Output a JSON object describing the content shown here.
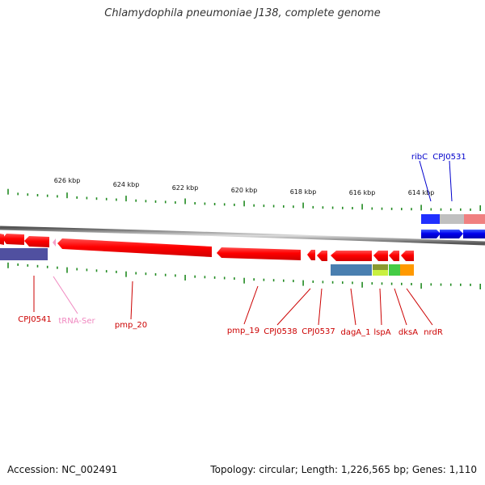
{
  "title": "Chlamydophila pneumoniae J138, complete genome",
  "footer": {
    "accession": "Accession: NC_002491",
    "summary": "Topology: circular; Length: 1,226,565 bp; Genes: 1,110"
  },
  "scale_ticks": [
    {
      "label": "626 kbp"
    },
    {
      "label": "624 kbp"
    },
    {
      "label": "622 kbp"
    },
    {
      "label": "620 kbp"
    },
    {
      "label": "618 kbp"
    },
    {
      "label": "616 kbp"
    },
    {
      "label": "614 kbp"
    }
  ],
  "genes": [
    {
      "label": "ribC",
      "color": "#0000cc"
    },
    {
      "label": "CPJ0531",
      "color": "#0000cc"
    },
    {
      "label": "CPJ0541",
      "color": "#cc0000"
    },
    {
      "label": "tRNA-Ser",
      "color": "#f088c0"
    },
    {
      "label": "pmp_20",
      "color": "#cc0000"
    },
    {
      "label": "pmp_19",
      "color": "#cc0000"
    },
    {
      "label": "CPJ0538",
      "color": "#cc0000"
    },
    {
      "label": "CPJ0537",
      "color": "#cc0000"
    },
    {
      "label": "dagA_1",
      "color": "#cc0000"
    },
    {
      "label": "lspA",
      "color": "#cc0000"
    },
    {
      "label": "dksA",
      "color": "#cc0000"
    },
    {
      "label": "nrdR",
      "color": "#cc0000"
    }
  ],
  "colors": {
    "forward_strand": "#0000ee",
    "reverse_strand": "#ff0000",
    "backbone": "#777777",
    "tick": "#228b22",
    "cog_blue": "#4a7fb0",
    "cog_purple": "#5050a0",
    "cog_grey": "#c0c0c0",
    "cog_pink": "#f08080",
    "cog_olive": "#8a9a30",
    "cog_green": "#44cc44",
    "cog_orange": "#ff9900"
  }
}
